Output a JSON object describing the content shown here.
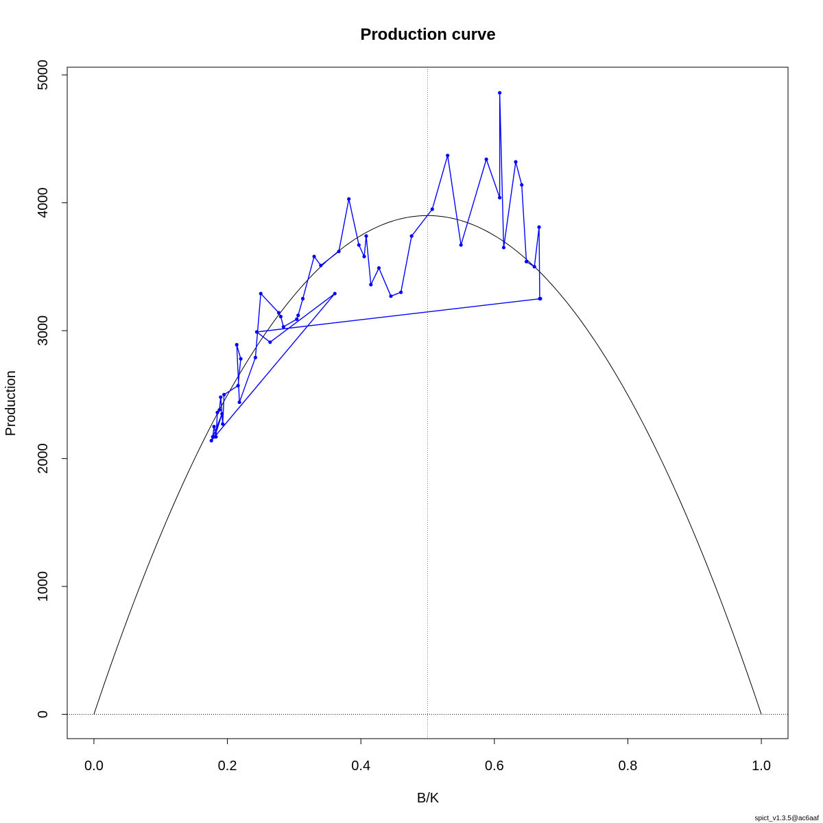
{
  "chart_data": {
    "type": "line",
    "title": "Production curve",
    "xlabel": "B/K",
    "ylabel": "Production",
    "xlim": [
      -0.04,
      1.04
    ],
    "ylim": [
      -190,
      5060
    ],
    "x_ticks": [
      0.0,
      0.2,
      0.4,
      0.6,
      0.8,
      1.0
    ],
    "x_tick_labels": [
      "0.0",
      "0.2",
      "0.4",
      "0.6",
      "0.8",
      "1.0"
    ],
    "y_ticks": [
      0,
      1000,
      2000,
      3000,
      4000,
      5000
    ],
    "y_tick_labels": [
      "0",
      "1000",
      "2000",
      "3000",
      "4000",
      "5000"
    ],
    "grid": false,
    "reference_lines": {
      "vertical_x": 0.5,
      "horizontal_y": 0,
      "style": "dotted"
    },
    "theoretical_curve": {
      "shape": "parabola",
      "max_production": 3900,
      "bmsy_over_k": 0.5,
      "roots": [
        0.0,
        1.0
      ],
      "color": "#000000"
    },
    "series": [
      {
        "color": "#0000ff",
        "marker": "point",
        "x": [
          0.178,
          0.18,
          0.183,
          0.185,
          0.188,
          0.19,
          0.193,
          0.195,
          0.216,
          0.22,
          0.214,
          0.218,
          0.242,
          0.25,
          0.277,
          0.28,
          0.284,
          0.304,
          0.306,
          0.313,
          0.33,
          0.34,
          0.367,
          0.382,
          0.397,
          0.405,
          0.408,
          0.415,
          0.427,
          0.445,
          0.46,
          0.476,
          0.507,
          0.53,
          0.55,
          0.588,
          0.608,
          0.608,
          0.614,
          0.632,
          0.641,
          0.648,
          0.66,
          0.667,
          0.668,
          0.669,
          0.244,
          0.264,
          0.361,
          0.176,
          0.192,
          0.181
        ],
        "y": [
          2170,
          2250,
          2170,
          2360,
          2380,
          2480,
          2270,
          2500,
          2570,
          2780,
          2890,
          2440,
          2790,
          3290,
          3140,
          3110,
          3030,
          3090,
          3120,
          3250,
          3580,
          3510,
          3620,
          4030,
          3670,
          3580,
          3740,
          3360,
          3490,
          3270,
          3300,
          3740,
          3950,
          4370,
          3670,
          4340,
          4040,
          4860,
          3650,
          4320,
          4140,
          3540,
          3500,
          3810,
          3250,
          3250,
          2990,
          2910,
          3290,
          2140,
          2350,
          2170
        ]
      }
    ]
  },
  "footer_note": "spict_v1.3.5@ac6aaf"
}
